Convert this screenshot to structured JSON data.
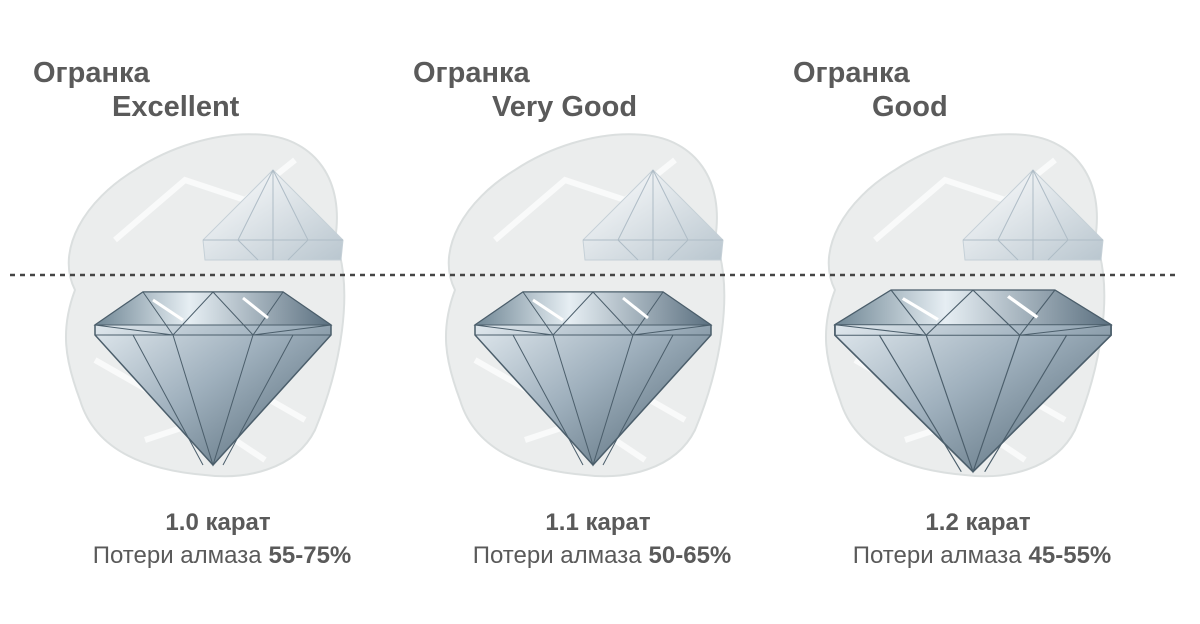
{
  "panels": [
    {
      "heading": "Огранка",
      "grade": "Excellent",
      "weight": "1.0 карат",
      "loss_label": "Потери алмаза",
      "loss_value": "55-75%"
    },
    {
      "heading": "Огранка",
      "grade": "Very Good",
      "weight": "1.1 карат",
      "loss_label": "Потери алмаза",
      "loss_value": "50-65%"
    },
    {
      "heading": "Огранка",
      "grade": "Good",
      "weight": "1.2 карат",
      "loss_label": "Потери алмаза",
      "loss_value": "45-55%"
    }
  ]
}
